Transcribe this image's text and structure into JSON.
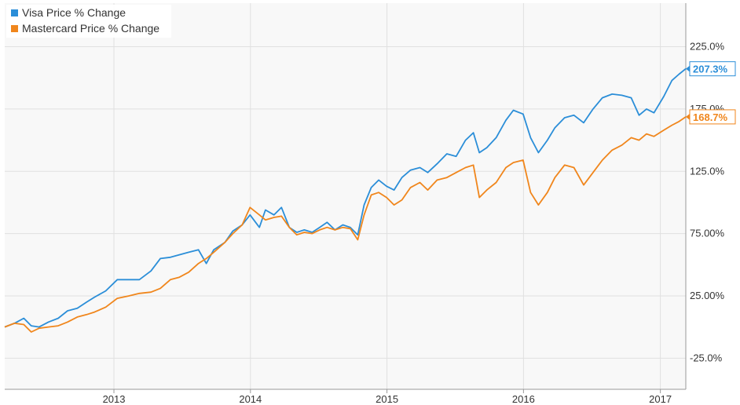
{
  "colors": {
    "visa": "#2b8ed8",
    "mastercard": "#f0861c",
    "plot_bg": "#f8f8f8",
    "grid": "#e0e0e0",
    "axis": "#999999"
  },
  "chart_data": {
    "type": "line",
    "title": "",
    "xlabel": "",
    "ylabel": "",
    "x_range": [
      "2012-03-15",
      "2017-03-10"
    ],
    "ylim": [
      -50,
      260
    ],
    "y_ticks": [
      -25,
      25,
      75,
      125,
      175,
      225
    ],
    "y_tick_labels": [
      "-25.0%",
      "25.00%",
      "75.00%",
      "125.0%",
      "175.0%",
      "225.0%"
    ],
    "x_ticks": [
      "2013-01-01",
      "2014-01-01",
      "2015-01-01",
      "2016-01-01",
      "2017-01-01"
    ],
    "x_tick_labels": [
      "2013",
      "2014",
      "2015",
      "2016",
      "2017"
    ],
    "grid": true,
    "legend_position": "top-left",
    "series": [
      {
        "name": "Visa Price % Change",
        "end_label": "207.3%",
        "points": [
          [
            "2012-03-15",
            0
          ],
          [
            "2012-04-10",
            3
          ],
          [
            "2012-05-05",
            7
          ],
          [
            "2012-05-25",
            1
          ],
          [
            "2012-06-15",
            0
          ],
          [
            "2012-07-10",
            4
          ],
          [
            "2012-08-05",
            7
          ],
          [
            "2012-08-30",
            13
          ],
          [
            "2012-09-25",
            15
          ],
          [
            "2012-10-20",
            20
          ],
          [
            "2012-11-10",
            24
          ],
          [
            "2012-12-10",
            29
          ],
          [
            "2013-01-10",
            38
          ],
          [
            "2013-02-10",
            38
          ],
          [
            "2013-03-10",
            38
          ],
          [
            "2013-04-10",
            45
          ],
          [
            "2013-05-05",
            55
          ],
          [
            "2013-06-01",
            56
          ],
          [
            "2013-06-25",
            58
          ],
          [
            "2013-07-20",
            60
          ],
          [
            "2013-08-15",
            62
          ],
          [
            "2013-09-05",
            51
          ],
          [
            "2013-09-25",
            62
          ],
          [
            "2013-10-25",
            68
          ],
          [
            "2013-11-15",
            77
          ],
          [
            "2013-12-10",
            82
          ],
          [
            "2013-12-31",
            90
          ],
          [
            "2014-01-25",
            80
          ],
          [
            "2014-02-10",
            94
          ],
          [
            "2014-03-05",
            90
          ],
          [
            "2014-03-25",
            96
          ],
          [
            "2014-04-15",
            80
          ],
          [
            "2014-05-05",
            76
          ],
          [
            "2014-05-25",
            78
          ],
          [
            "2014-06-15",
            76
          ],
          [
            "2014-07-05",
            80
          ],
          [
            "2014-07-25",
            84
          ],
          [
            "2014-08-15",
            78
          ],
          [
            "2014-09-05",
            82
          ],
          [
            "2014-09-25",
            80
          ],
          [
            "2014-10-15",
            74
          ],
          [
            "2014-11-01",
            98
          ],
          [
            "2014-11-20",
            112
          ],
          [
            "2014-12-10",
            118
          ],
          [
            "2014-12-31",
            113
          ],
          [
            "2015-01-20",
            110
          ],
          [
            "2015-02-10",
            120
          ],
          [
            "2015-03-05",
            126
          ],
          [
            "2015-03-30",
            128
          ],
          [
            "2015-04-20",
            124
          ],
          [
            "2015-05-15",
            131
          ],
          [
            "2015-06-10",
            139
          ],
          [
            "2015-07-05",
            137
          ],
          [
            "2015-07-30",
            150
          ],
          [
            "2015-08-20",
            156
          ],
          [
            "2015-09-05",
            140
          ],
          [
            "2015-09-25",
            144
          ],
          [
            "2015-10-20",
            152
          ],
          [
            "2015-11-15",
            166
          ],
          [
            "2015-12-05",
            174
          ],
          [
            "2015-12-31",
            171
          ],
          [
            "2016-01-20",
            152
          ],
          [
            "2016-02-10",
            140
          ],
          [
            "2016-03-05",
            150
          ],
          [
            "2016-03-25",
            160
          ],
          [
            "2016-04-20",
            168
          ],
          [
            "2016-05-15",
            170
          ],
          [
            "2016-06-10",
            164
          ],
          [
            "2016-07-05",
            175
          ],
          [
            "2016-07-30",
            184
          ],
          [
            "2016-08-25",
            187
          ],
          [
            "2016-09-20",
            186
          ],
          [
            "2016-10-15",
            184
          ],
          [
            "2016-11-05",
            170
          ],
          [
            "2016-11-25",
            175
          ],
          [
            "2016-12-15",
            172
          ],
          [
            "2017-01-10",
            185
          ],
          [
            "2017-02-01",
            198
          ],
          [
            "2017-02-20",
            203
          ],
          [
            "2017-03-10",
            207.3
          ]
        ]
      },
      {
        "name": "Mastercard Price % Change",
        "end_label": "168.7%",
        "points": [
          [
            "2012-03-15",
            0
          ],
          [
            "2012-04-10",
            3
          ],
          [
            "2012-05-05",
            2
          ],
          [
            "2012-05-25",
            -4
          ],
          [
            "2012-06-15",
            -1
          ],
          [
            "2012-07-10",
            0
          ],
          [
            "2012-08-05",
            1
          ],
          [
            "2012-08-30",
            4
          ],
          [
            "2012-09-25",
            8
          ],
          [
            "2012-10-20",
            10
          ],
          [
            "2012-11-10",
            12
          ],
          [
            "2012-12-10",
            16
          ],
          [
            "2013-01-10",
            23
          ],
          [
            "2013-02-10",
            25
          ],
          [
            "2013-03-10",
            27
          ],
          [
            "2013-04-10",
            28
          ],
          [
            "2013-05-05",
            31
          ],
          [
            "2013-06-01",
            38
          ],
          [
            "2013-06-25",
            40
          ],
          [
            "2013-07-20",
            44
          ],
          [
            "2013-08-15",
            51
          ],
          [
            "2013-09-05",
            55
          ],
          [
            "2013-09-25",
            60
          ],
          [
            "2013-10-25",
            68
          ],
          [
            "2013-11-15",
            75
          ],
          [
            "2013-12-10",
            82
          ],
          [
            "2013-12-31",
            96
          ],
          [
            "2014-01-25",
            90
          ],
          [
            "2014-02-10",
            86
          ],
          [
            "2014-03-05",
            88
          ],
          [
            "2014-03-25",
            89
          ],
          [
            "2014-04-15",
            80
          ],
          [
            "2014-05-05",
            74
          ],
          [
            "2014-05-25",
            76
          ],
          [
            "2014-06-15",
            75
          ],
          [
            "2014-07-05",
            78
          ],
          [
            "2014-07-25",
            80
          ],
          [
            "2014-08-15",
            78
          ],
          [
            "2014-09-05",
            80
          ],
          [
            "2014-09-25",
            79
          ],
          [
            "2014-10-15",
            70
          ],
          [
            "2014-11-01",
            90
          ],
          [
            "2014-11-20",
            106
          ],
          [
            "2014-12-10",
            108
          ],
          [
            "2014-12-31",
            104
          ],
          [
            "2015-01-20",
            98
          ],
          [
            "2015-02-10",
            102
          ],
          [
            "2015-03-05",
            112
          ],
          [
            "2015-03-30",
            116
          ],
          [
            "2015-04-20",
            110
          ],
          [
            "2015-05-15",
            118
          ],
          [
            "2015-06-10",
            120
          ],
          [
            "2015-07-05",
            124
          ],
          [
            "2015-07-30",
            128
          ],
          [
            "2015-08-20",
            130
          ],
          [
            "2015-09-05",
            104
          ],
          [
            "2015-09-25",
            110
          ],
          [
            "2015-10-20",
            116
          ],
          [
            "2015-11-15",
            128
          ],
          [
            "2015-12-05",
            132
          ],
          [
            "2015-12-31",
            134
          ],
          [
            "2016-01-20",
            108
          ],
          [
            "2016-02-10",
            98
          ],
          [
            "2016-03-05",
            108
          ],
          [
            "2016-03-25",
            120
          ],
          [
            "2016-04-20",
            130
          ],
          [
            "2016-05-15",
            128
          ],
          [
            "2016-06-10",
            114
          ],
          [
            "2016-07-05",
            124
          ],
          [
            "2016-07-30",
            134
          ],
          [
            "2016-08-25",
            142
          ],
          [
            "2016-09-20",
            146
          ],
          [
            "2016-10-15",
            152
          ],
          [
            "2016-11-05",
            150
          ],
          [
            "2016-11-25",
            155
          ],
          [
            "2016-12-15",
            153
          ],
          [
            "2017-01-10",
            158
          ],
          [
            "2017-02-01",
            162
          ],
          [
            "2017-02-20",
            165
          ],
          [
            "2017-03-10",
            168.7
          ]
        ]
      }
    ]
  }
}
